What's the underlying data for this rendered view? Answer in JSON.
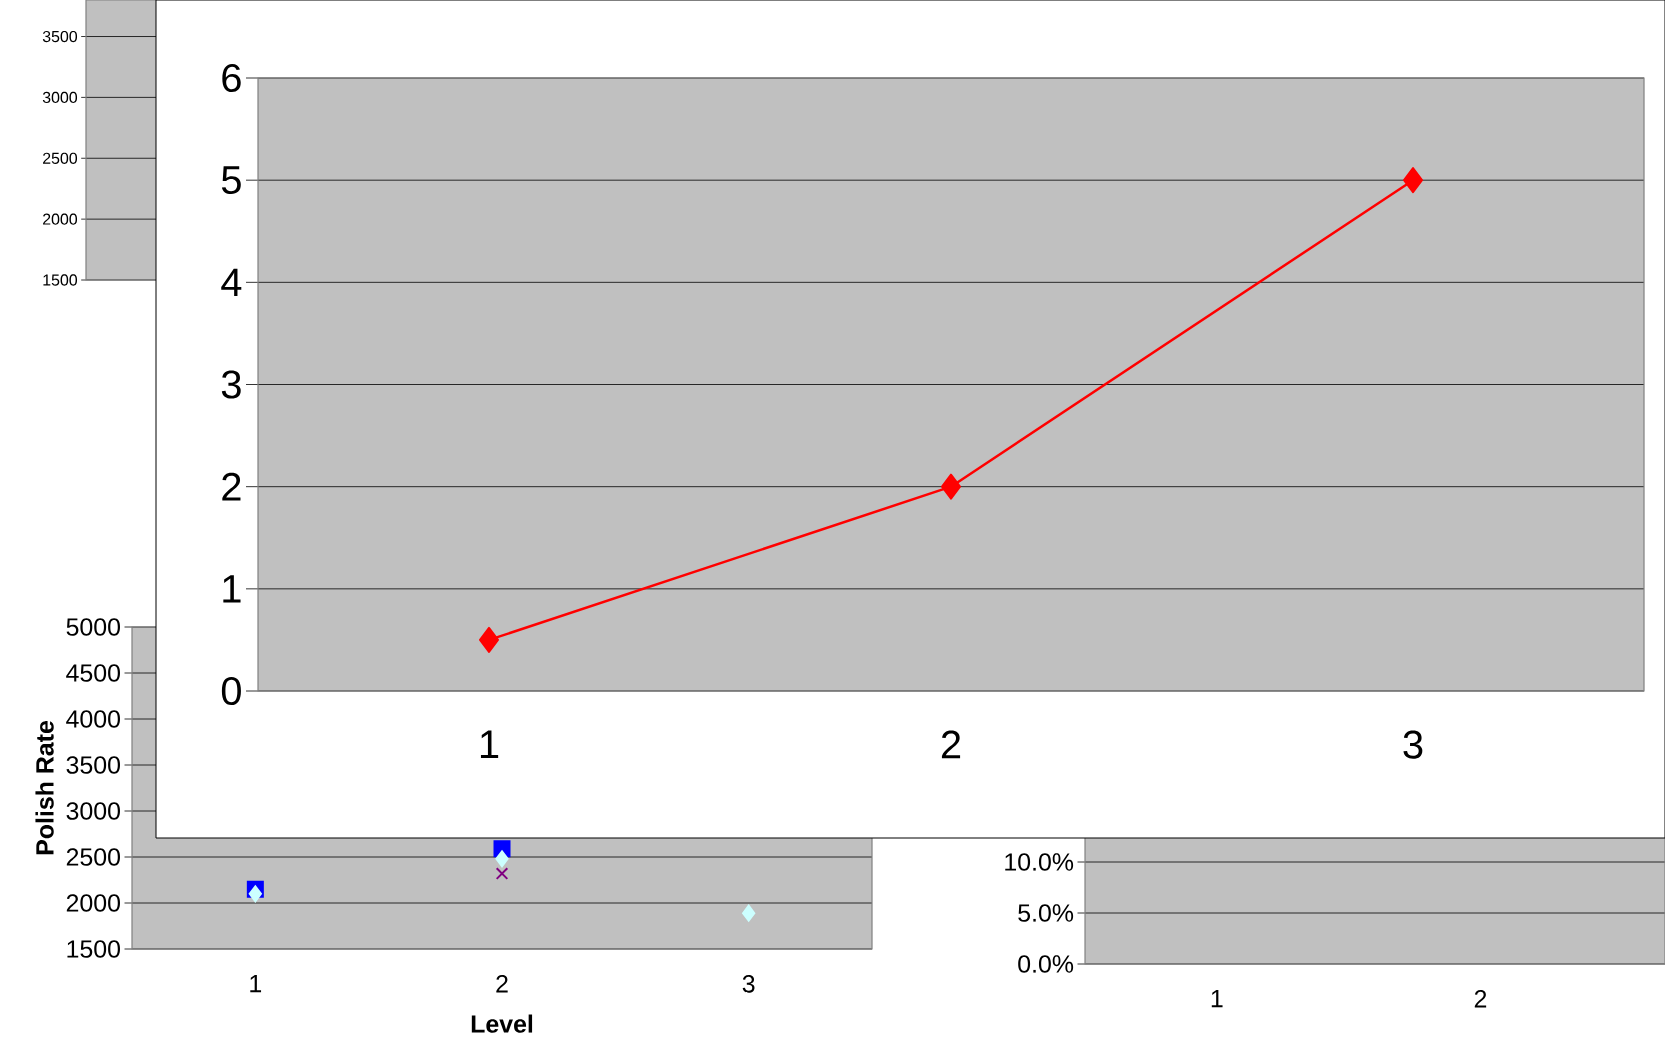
{
  "chart_data": [
    {
      "type": "line",
      "categories": [
        null
      ],
      "values": [
        null
      ],
      "ylim": [
        1500,
        3800
      ],
      "yticks": [
        1500,
        2000,
        2500,
        3000,
        3500
      ],
      "grid": "y"
    },
    {
      "type": "line",
      "categories": [
        "1",
        "2",
        "3"
      ],
      "values": [
        0.5,
        2,
        5
      ],
      "color": "#ff0000",
      "marker": "diamond",
      "ylim": [
        0,
        6
      ],
      "yticks": [
        0,
        1,
        2,
        3,
        4,
        5,
        6
      ],
      "grid": "y"
    },
    {
      "type": "scatter",
      "xlabel": "Level",
      "ylabel": "Polish Rate",
      "categories": [
        "1",
        "2",
        "3"
      ],
      "series": [
        {
          "color": "#0000ff",
          "values": [
            2150,
            2590,
            null
          ],
          "marker": "square"
        },
        {
          "color": "#800080",
          "values": [
            null,
            2320,
            null
          ],
          "marker": "cross"
        },
        {
          "color": "#ccffff",
          "values": [
            2100,
            2480,
            1890
          ],
          "marker": "diamond"
        }
      ],
      "ylim": [
        1500,
        5000
      ],
      "yticks": [
        1500,
        2000,
        2500,
        3000,
        3500,
        4000,
        4500,
        5000
      ],
      "grid": "y"
    },
    {
      "type": "line",
      "categories": [
        "1",
        "2"
      ],
      "values": [
        null,
        null
      ],
      "ylim": [
        0,
        12.5
      ],
      "yticks": [
        {
          "value": 0,
          "label": "0.0%"
        },
        {
          "value": 5,
          "label": "5.0%"
        },
        {
          "value": 10,
          "label": "10.0%"
        }
      ],
      "grid": "y"
    }
  ]
}
